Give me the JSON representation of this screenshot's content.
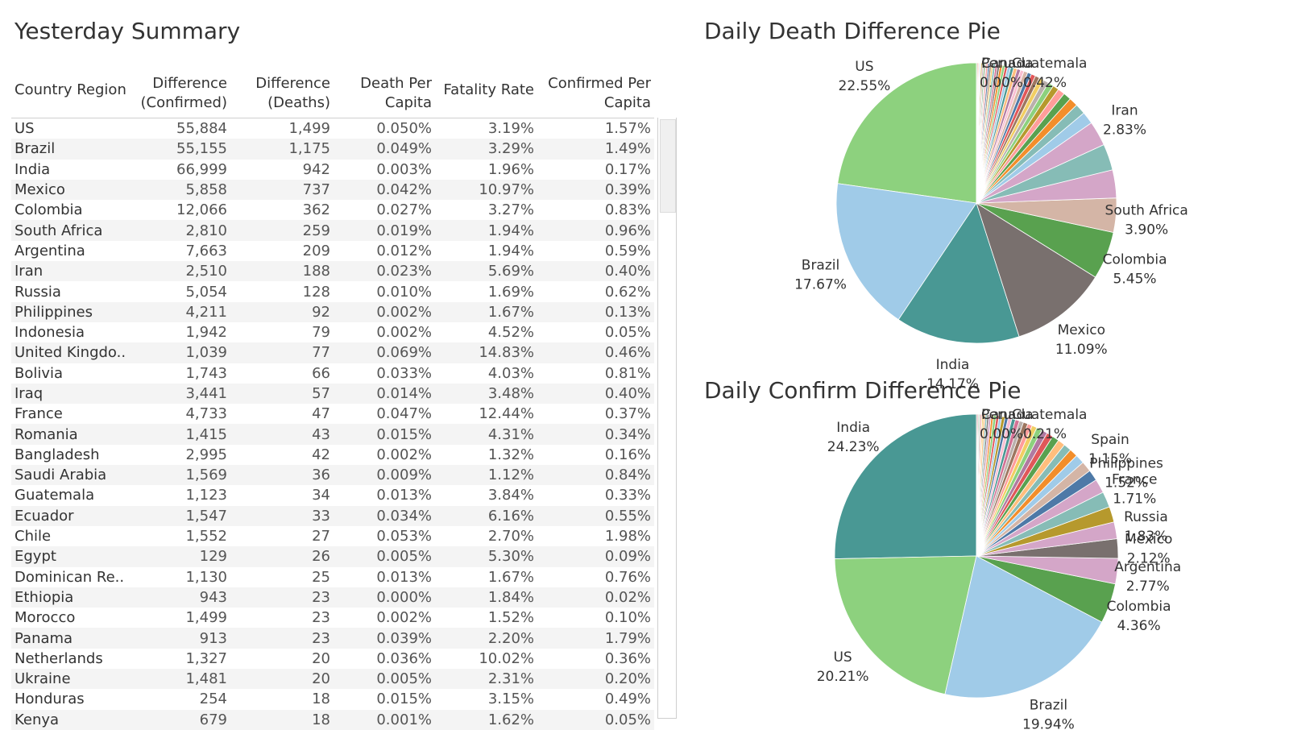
{
  "summary": {
    "title": "Yesterday Summary",
    "columns": [
      "Country Region",
      "Difference\n(Confirmed)",
      "Difference\n(Deaths)",
      "Death Per\nCapita",
      "Fatality Rate",
      "Confirmed Per\nCapita"
    ],
    "rows": [
      [
        "US",
        "55,884",
        "1,499",
        "0.050%",
        "3.19%",
        "1.57%"
      ],
      [
        "Brazil",
        "55,155",
        "1,175",
        "0.049%",
        "3.29%",
        "1.49%"
      ],
      [
        "India",
        "66,999",
        "942",
        "0.003%",
        "1.96%",
        "0.17%"
      ],
      [
        "Mexico",
        "5,858",
        "737",
        "0.042%",
        "10.97%",
        "0.39%"
      ],
      [
        "Colombia",
        "12,066",
        "362",
        "0.027%",
        "3.27%",
        "0.83%"
      ],
      [
        "South Africa",
        "2,810",
        "259",
        "0.019%",
        "1.94%",
        "0.96%"
      ],
      [
        "Argentina",
        "7,663",
        "209",
        "0.012%",
        "1.94%",
        "0.59%"
      ],
      [
        "Iran",
        "2,510",
        "188",
        "0.023%",
        "5.69%",
        "0.40%"
      ],
      [
        "Russia",
        "5,054",
        "128",
        "0.010%",
        "1.69%",
        "0.62%"
      ],
      [
        "Philippines",
        "4,211",
        "92",
        "0.002%",
        "1.67%",
        "0.13%"
      ],
      [
        "Indonesia",
        "1,942",
        "79",
        "0.002%",
        "4.52%",
        "0.05%"
      ],
      [
        "United Kingdo..",
        "1,039",
        "77",
        "0.069%",
        "14.83%",
        "0.46%"
      ],
      [
        "Bolivia",
        "1,743",
        "66",
        "0.033%",
        "4.03%",
        "0.81%"
      ],
      [
        "Iraq",
        "3,441",
        "57",
        "0.014%",
        "3.48%",
        "0.40%"
      ],
      [
        "France",
        "4,733",
        "47",
        "0.047%",
        "12.44%",
        "0.37%"
      ],
      [
        "Romania",
        "1,415",
        "43",
        "0.015%",
        "4.31%",
        "0.34%"
      ],
      [
        "Bangladesh",
        "2,995",
        "42",
        "0.002%",
        "1.32%",
        "0.16%"
      ],
      [
        "Saudi Arabia",
        "1,569",
        "36",
        "0.009%",
        "1.12%",
        "0.84%"
      ],
      [
        "Guatemala",
        "1,123",
        "34",
        "0.013%",
        "3.84%",
        "0.33%"
      ],
      [
        "Ecuador",
        "1,547",
        "33",
        "0.034%",
        "6.16%",
        "0.55%"
      ],
      [
        "Chile",
        "1,552",
        "27",
        "0.053%",
        "2.70%",
        "1.98%"
      ],
      [
        "Egypt",
        "129",
        "26",
        "0.005%",
        "5.30%",
        "0.09%"
      ],
      [
        "Dominican Re..",
        "1,130",
        "25",
        "0.013%",
        "1.67%",
        "0.76%"
      ],
      [
        "Ethiopia",
        "943",
        "23",
        "0.000%",
        "1.84%",
        "0.02%"
      ],
      [
        "Morocco",
        "1,499",
        "23",
        "0.002%",
        "1.52%",
        "0.10%"
      ],
      [
        "Panama",
        "913",
        "23",
        "0.039%",
        "2.20%",
        "1.79%"
      ],
      [
        "Netherlands",
        "1,327",
        "20",
        "0.036%",
        "10.02%",
        "0.36%"
      ],
      [
        "Ukraine",
        "1,481",
        "20",
        "0.005%",
        "2.31%",
        "0.20%"
      ],
      [
        "Honduras",
        "254",
        "18",
        "0.015%",
        "3.15%",
        "0.49%"
      ],
      [
        "Kenya",
        "679",
        "18",
        "0.001%",
        "1.62%",
        "0.05%"
      ]
    ]
  },
  "chart_data": [
    {
      "type": "pie",
      "title": "Daily Death Difference Pie",
      "slices": [
        {
          "label": "US",
          "value": 22.55,
          "pct_text": "22.55%",
          "color": "#8dd17e"
        },
        {
          "label": "Brazil",
          "value": 17.67,
          "pct_text": "17.67%",
          "color": "#a0cbe8"
        },
        {
          "label": "India",
          "value": 14.17,
          "pct_text": "14.17%",
          "color": "#499894"
        },
        {
          "label": "Mexico",
          "value": 11.09,
          "pct_text": "11.09%",
          "color": "#79706e"
        },
        {
          "label": "Colombia",
          "value": 5.45,
          "pct_text": "5.45%",
          "color": "#59a14f"
        },
        {
          "label": "South Africa",
          "value": 3.9,
          "pct_text": "3.90%",
          "color": "#d4b5a6"
        },
        {
          "label": "",
          "value": 3.2,
          "color": "#d4a6c8"
        },
        {
          "label": "",
          "value": 3.0,
          "color": "#86bcb6"
        },
        {
          "label": "Iran",
          "value": 2.83,
          "pct_text": "2.83%",
          "color": "#d4a6c8"
        },
        {
          "label": "",
          "value": 1.4,
          "color": "#a0cbe8"
        },
        {
          "label": "",
          "value": 1.2,
          "color": "#86bcb6"
        },
        {
          "label": "",
          "value": 1.0,
          "color": "#f28e2b"
        },
        {
          "label": "",
          "value": 0.9,
          "color": "#59a14f"
        },
        {
          "label": "",
          "value": 0.8,
          "color": "#ff9d9a"
        },
        {
          "label": "",
          "value": 0.7,
          "color": "#b6992d"
        },
        {
          "label": "",
          "value": 0.65,
          "color": "#8cd17d"
        },
        {
          "label": "",
          "value": 0.6,
          "color": "#bab0ac"
        },
        {
          "label": "",
          "value": 0.55,
          "color": "#f1ce63"
        },
        {
          "label": "",
          "value": 0.5,
          "color": "#9d7660"
        },
        {
          "label": "",
          "value": 0.5,
          "color": "#e15759"
        },
        {
          "label": "",
          "value": 0.45,
          "color": "#4e79a7"
        },
        {
          "label": "",
          "value": 0.45,
          "color": "#d7b5a6"
        },
        {
          "label": "",
          "value": 0.4,
          "color": "#fabfd2"
        },
        {
          "label": "",
          "value": 0.4,
          "color": "#b07aa1"
        },
        {
          "label": "",
          "value": 0.4,
          "color": "#ffbe7d"
        },
        {
          "label": "",
          "value": 0.35,
          "color": "#499894"
        },
        {
          "label": "",
          "value": 0.35,
          "color": "#a0cbe8"
        },
        {
          "label": "",
          "value": 0.3,
          "color": "#e15759"
        },
        {
          "label": "",
          "value": 0.3,
          "color": "#8cd17d"
        },
        {
          "label": "",
          "value": 0.3,
          "color": "#f28e2b"
        },
        {
          "label": "",
          "value": 0.25,
          "color": "#79706e"
        },
        {
          "label": "",
          "value": 0.25,
          "color": "#d37295"
        },
        {
          "label": "",
          "value": 0.25,
          "color": "#86bcb6"
        },
        {
          "label": "",
          "value": 0.2,
          "color": "#f1ce63"
        },
        {
          "label": "",
          "value": 0.2,
          "color": "#9d7660"
        },
        {
          "label": "",
          "value": 0.2,
          "color": "#4e79a7"
        },
        {
          "label": "",
          "value": 0.2,
          "color": "#ff9d9a"
        },
        {
          "label": "",
          "value": 0.15,
          "color": "#bab0ac"
        },
        {
          "label": "",
          "value": 0.15,
          "color": "#59a14f"
        },
        {
          "label": "",
          "value": 0.15,
          "color": "#d4a6c8"
        },
        {
          "label": "",
          "value": 0.15,
          "color": "#b6992d"
        },
        {
          "label": "",
          "value": 0.1,
          "color": "#fabfd2"
        },
        {
          "label": "",
          "value": 0.1,
          "color": "#a0cbe8"
        },
        {
          "label": "",
          "value": 0.1,
          "color": "#ffbe7d"
        },
        {
          "label": "",
          "value": 0.1,
          "color": "#e15759"
        },
        {
          "label": "",
          "value": 0.1,
          "color": "#8cd17d"
        }
      ],
      "overlap_labels": {
        "text": "PeruGuatemala\nCanada",
        "pct": "0.00%0.42%"
      }
    },
    {
      "type": "pie",
      "title": "Daily Confirm Difference Pie",
      "slices": [
        {
          "label": "India",
          "value": 24.23,
          "pct_text": "24.23%",
          "color": "#499894"
        },
        {
          "label": "US",
          "value": 20.21,
          "pct_text": "20.21%",
          "color": "#8dd17e"
        },
        {
          "label": "Brazil",
          "value": 19.94,
          "pct_text": "19.94%",
          "color": "#a0cbe8"
        },
        {
          "label": "Colombia",
          "value": 4.36,
          "pct_text": "4.36%",
          "color": "#59a14f"
        },
        {
          "label": "Argentina",
          "value": 2.77,
          "pct_text": "2.77%",
          "color": "#d4a6c8"
        },
        {
          "label": "Mexico",
          "value": 2.12,
          "pct_text": "2.12%",
          "color": "#79706e"
        },
        {
          "label": "Russia",
          "value": 1.83,
          "pct_text": "1.83%",
          "color": "#d4a6c8"
        },
        {
          "label": "",
          "value": 1.7,
          "color": "#b6992d"
        },
        {
          "label": "France",
          "value": 1.71,
          "pct_text": "1.71%",
          "color": "#86bcb6"
        },
        {
          "label": "Philippines",
          "value": 1.52,
          "pct_text": "1.52%",
          "color": "#d4a6c8"
        },
        {
          "label": "",
          "value": 1.2,
          "color": "#4e79a7"
        },
        {
          "label": "Spain",
          "value": 1.15,
          "pct_text": "1.15%",
          "color": "#d4b5a6"
        },
        {
          "label": "",
          "value": 1.0,
          "color": "#a0cbe8"
        },
        {
          "label": "",
          "value": 0.9,
          "color": "#f28e2b"
        },
        {
          "label": "",
          "value": 0.85,
          "color": "#86bcb6"
        },
        {
          "label": "",
          "value": 0.8,
          "color": "#ffbe7d"
        },
        {
          "label": "",
          "value": 0.75,
          "color": "#59a14f"
        },
        {
          "label": "",
          "value": 0.7,
          "color": "#e15759"
        },
        {
          "label": "",
          "value": 0.65,
          "color": "#b07aa1"
        },
        {
          "label": "",
          "value": 0.6,
          "color": "#8cd17d"
        },
        {
          "label": "",
          "value": 0.55,
          "color": "#f1ce63"
        },
        {
          "label": "",
          "value": 0.5,
          "color": "#ff9d9a"
        },
        {
          "label": "",
          "value": 0.5,
          "color": "#9d7660"
        },
        {
          "label": "",
          "value": 0.45,
          "color": "#bab0ac"
        },
        {
          "label": "",
          "value": 0.45,
          "color": "#d37295"
        },
        {
          "label": "",
          "value": 0.4,
          "color": "#499894"
        },
        {
          "label": "",
          "value": 0.4,
          "color": "#fabfd2"
        },
        {
          "label": "",
          "value": 0.35,
          "color": "#4e79a7"
        },
        {
          "label": "",
          "value": 0.35,
          "color": "#b6992d"
        },
        {
          "label": "",
          "value": 0.3,
          "color": "#a0cbe8"
        },
        {
          "label": "",
          "value": 0.3,
          "color": "#e15759"
        },
        {
          "label": "",
          "value": 0.3,
          "color": "#8cd17d"
        },
        {
          "label": "",
          "value": 0.25,
          "color": "#f28e2b"
        },
        {
          "label": "",
          "value": 0.25,
          "color": "#d4a6c8"
        },
        {
          "label": "",
          "value": 0.2,
          "color": "#79706e"
        },
        {
          "label": "",
          "value": 0.2,
          "color": "#86bcb6"
        },
        {
          "label": "",
          "value": 0.2,
          "color": "#ffbe7d"
        },
        {
          "label": "",
          "value": 0.15,
          "color": "#f1ce63"
        },
        {
          "label": "",
          "value": 0.15,
          "color": "#ff9d9a"
        },
        {
          "label": "",
          "value": 0.15,
          "color": "#bab0ac"
        },
        {
          "label": "",
          "value": 0.1,
          "color": "#59a14f"
        },
        {
          "label": "",
          "value": 0.1,
          "color": "#d37295"
        },
        {
          "label": "",
          "value": 0.1,
          "color": "#9d7660"
        }
      ],
      "overlap_labels": {
        "text": "PeruGuatemala\nCanada",
        "pct": "0.00%0.21%"
      }
    }
  ]
}
